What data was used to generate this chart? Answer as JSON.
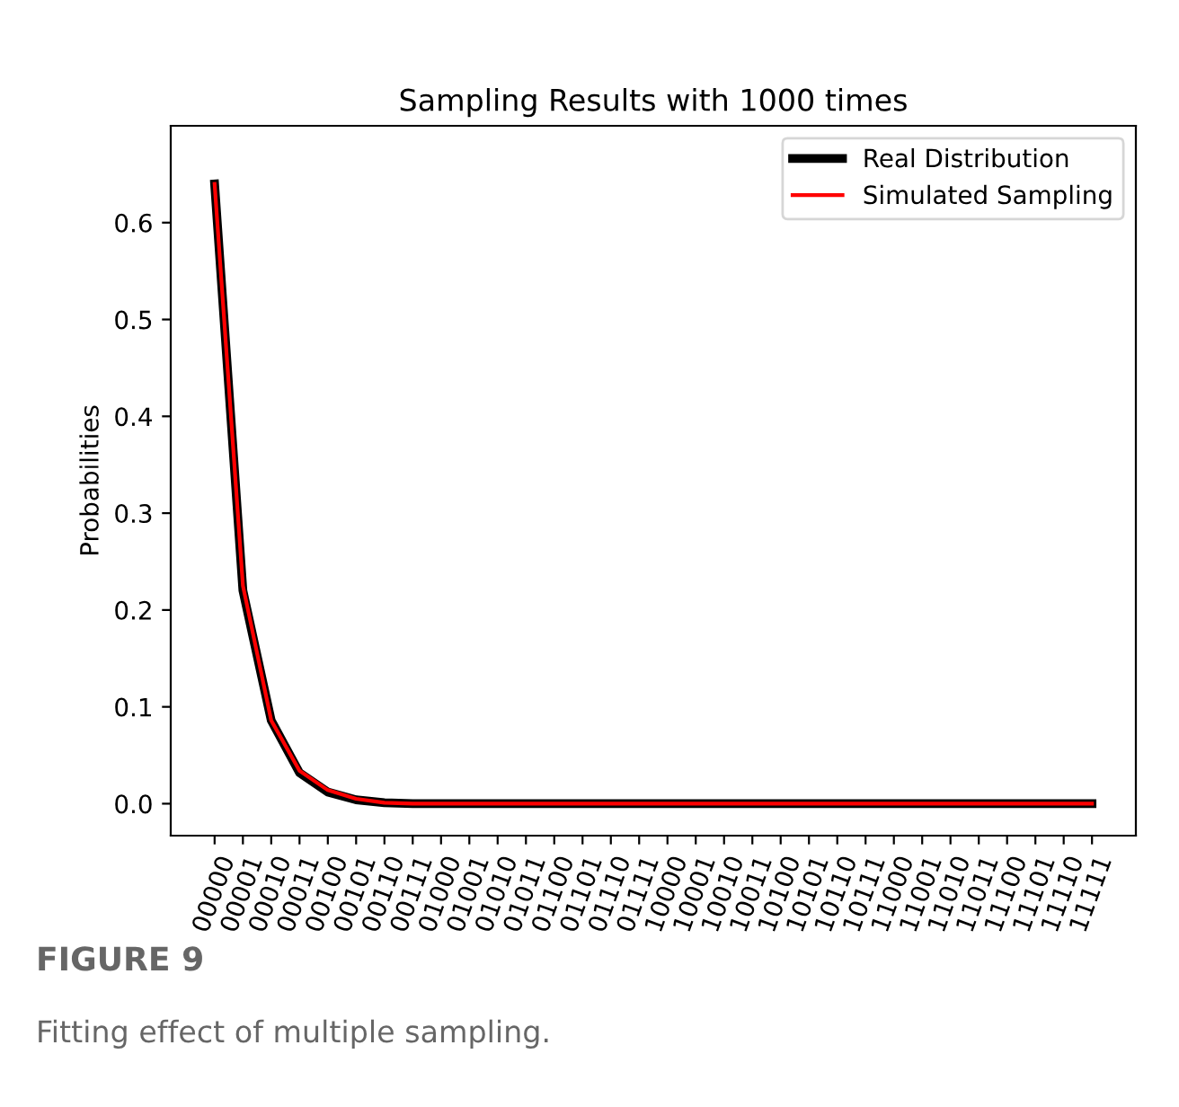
{
  "chart_data": {
    "type": "line",
    "title": "Sampling Results with 1000 times",
    "ylabel": "Probabilities",
    "categories": [
      "00000",
      "00001",
      "00010",
      "00011",
      "00100",
      "00101",
      "00110",
      "00111",
      "01000",
      "01001",
      "01010",
      "01011",
      "01100",
      "01101",
      "01110",
      "01111",
      "10000",
      "10001",
      "10010",
      "10011",
      "10100",
      "10101",
      "10110",
      "10111",
      "11000",
      "11001",
      "11010",
      "11011",
      "11100",
      "11101",
      "11110",
      "11111"
    ],
    "series": [
      {
        "name": "Real Distribution",
        "color": "#000000",
        "values": [
          0.64,
          0.22,
          0.086,
          0.032,
          0.012,
          0.004,
          0.001,
          0,
          0,
          0,
          0,
          0,
          0,
          0,
          0,
          0,
          0,
          0,
          0,
          0,
          0,
          0,
          0,
          0,
          0,
          0,
          0,
          0,
          0,
          0,
          0,
          0
        ]
      },
      {
        "name": "Simulated Sampling",
        "color": "#ff0000",
        "values": [
          0.64,
          0.225,
          0.086,
          0.034,
          0.014,
          0.005,
          0.001,
          0,
          0,
          0,
          0,
          0,
          0,
          0,
          0,
          0,
          0,
          0,
          0,
          0,
          0,
          0,
          0,
          0,
          0,
          0,
          0,
          0,
          0,
          0,
          0,
          0
        ]
      }
    ],
    "ylim": [
      -0.033,
      0.7
    ],
    "yticks": [
      {
        "value": 0,
        "label": "0.0"
      },
      0.1,
      0.2,
      0.3,
      0.4,
      0.5,
      0.6
    ],
    "legend": "top right",
    "grid": false,
    "marker": "none",
    "line_style": "solid",
    "annotations": [
      "FIGURE 9",
      "Fitting effect of multiple sampling."
    ]
  }
}
